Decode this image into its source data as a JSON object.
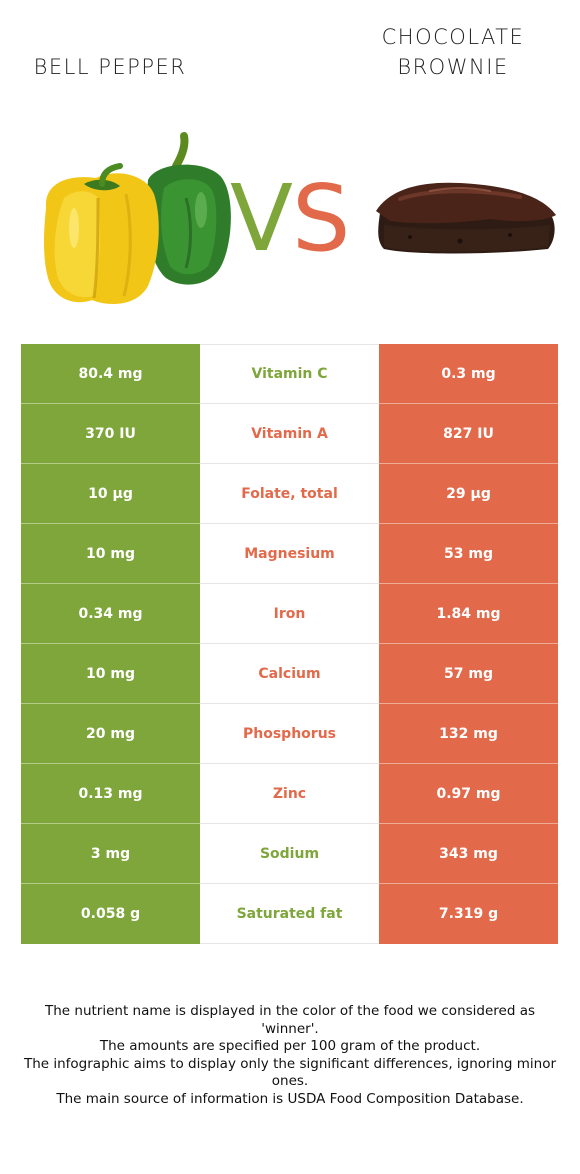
{
  "left_food": {
    "name": "BELL PEPPER",
    "color": "#7ea63a"
  },
  "right_food": {
    "name_lines": [
      "CHOCOLATE",
      "BROWNIE"
    ],
    "color": "#e26a4a"
  },
  "vs": {
    "v": "V",
    "s": "S"
  },
  "rows": [
    {
      "nutrient": "Vitamin C",
      "left": "80.4 mg",
      "right": "0.3 mg",
      "winner": "left"
    },
    {
      "nutrient": "Vitamin A",
      "left": "370 IU",
      "right": "827 IU",
      "winner": "right"
    },
    {
      "nutrient": "Folate, total",
      "left": "10 µg",
      "right": "29 µg",
      "winner": "right"
    },
    {
      "nutrient": "Magnesium",
      "left": "10 mg",
      "right": "53 mg",
      "winner": "right"
    },
    {
      "nutrient": "Iron",
      "left": "0.34 mg",
      "right": "1.84 mg",
      "winner": "right"
    },
    {
      "nutrient": "Calcium",
      "left": "10 mg",
      "right": "57 mg",
      "winner": "right"
    },
    {
      "nutrient": "Phosphorus",
      "left": "20 mg",
      "right": "132 mg",
      "winner": "right"
    },
    {
      "nutrient": "Zinc",
      "left": "0.13 mg",
      "right": "0.97 mg",
      "winner": "right"
    },
    {
      "nutrient": "Sodium",
      "left": "3 mg",
      "right": "343 mg",
      "winner": "left"
    },
    {
      "nutrient": "Saturated fat",
      "left": "0.058 g",
      "right": "7.319 g",
      "winner": "left"
    }
  ],
  "footnote": [
    "The nutrient name is displayed in the color of the food we considered as 'winner'.",
    "The amounts are specified per 100 gram of the product.",
    "The infographic aims to display only the significant differences, ignoring minor ones.",
    "The main source of information is USDA Food Composition Database."
  ]
}
